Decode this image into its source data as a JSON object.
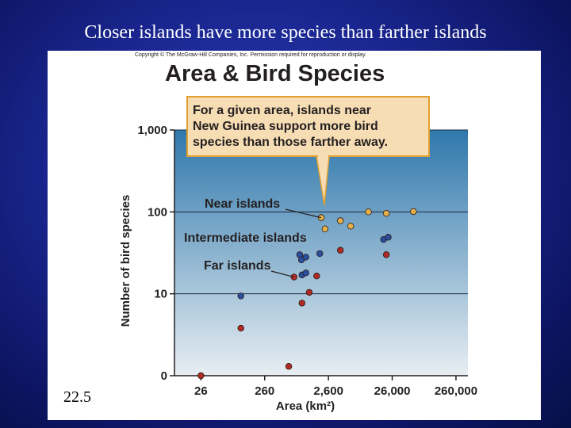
{
  "slide": {
    "title": "Closer islands have more species than farther islands",
    "number": "22.5"
  },
  "figure": {
    "copyright": "Copyright © The McGraw-Hill Companies, Inc. Permission required for reproduction or display.",
    "callout_lines": [
      "For a given area, islands near",
      "New Guinea support more bird",
      "species than those farther away."
    ]
  },
  "colors": {
    "near": "#e8b04a",
    "intermediate": "#2a4ea0",
    "far": "#b02a26",
    "callout_fill": "#f7ddb4",
    "callout_border": "#e0a030",
    "plot_top": "#2f78ac",
    "plot_bottom": "#e8eef3"
  },
  "chart_data": {
    "type": "scatter",
    "title": "Area & Bird Species",
    "xlabel": "Area (km²)",
    "ylabel": "Number of bird species",
    "xscale": "log",
    "yscale": "log",
    "xlim": [
      10,
      400000
    ],
    "ylim": [
      1,
      1000
    ],
    "xticks": [
      {
        "value": 26,
        "label": "26"
      },
      {
        "value": 260,
        "label": "260"
      },
      {
        "value": 2600,
        "label": "2,600"
      },
      {
        "value": 26000,
        "label": "26,000"
      },
      {
        "value": 260000,
        "label": "260,000"
      }
    ],
    "yticks": [
      {
        "value": 1,
        "label": "0"
      },
      {
        "value": 10,
        "label": "10"
      },
      {
        "value": 100,
        "label": "100"
      },
      {
        "value": 1000,
        "label": "1,000"
      }
    ],
    "grid": true,
    "series": [
      {
        "name": "Near islands",
        "color_key": "near",
        "points": [
          [
            2000,
            85
          ],
          [
            2300,
            62
          ],
          [
            4000,
            78
          ],
          [
            5800,
            67
          ],
          [
            11000,
            100
          ],
          [
            21000,
            96
          ],
          [
            56000,
            101
          ]
        ]
      },
      {
        "name": "Intermediate islands",
        "color_key": "intermediate",
        "points": [
          [
            920,
            30
          ],
          [
            980,
            26
          ],
          [
            1150,
            28
          ],
          [
            1900,
            31
          ],
          [
            1000,
            17
          ],
          [
            1150,
            18
          ],
          [
            19000,
            46
          ],
          [
            22500,
            49
          ],
          [
            110,
            9.4
          ]
        ]
      },
      {
        "name": "Far islands",
        "color_key": "far",
        "points": [
          [
            26,
            1
          ],
          [
            110,
            3.8
          ],
          [
            620,
            1.3
          ],
          [
            750,
            16
          ],
          [
            1000,
            7.7
          ],
          [
            1300,
            10.4
          ],
          [
            1700,
            16.5
          ],
          [
            4000,
            34
          ],
          [
            21000,
            30
          ]
        ]
      }
    ]
  }
}
